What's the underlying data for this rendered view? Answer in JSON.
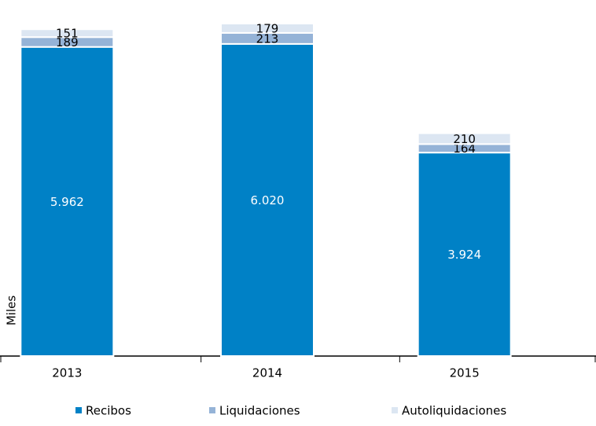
{
  "chart_data": {
    "type": "stacked_bar",
    "y_label": "Miles",
    "categories": [
      "2013",
      "2014",
      "2015"
    ],
    "series": [
      {
        "name": "Recibos",
        "color": "#0081c6",
        "values": [
          5962,
          6020,
          3924
        ],
        "value_labels": [
          "5.962",
          "6.020",
          "3.924"
        ]
      },
      {
        "name": "Liquidaciones",
        "color": "#95b3d7",
        "values": [
          189,
          213,
          164
        ]
      },
      {
        "name": "Autoliquidaciones",
        "color": "#dce6f2",
        "values": [
          151,
          179,
          210
        ]
      }
    ]
  }
}
